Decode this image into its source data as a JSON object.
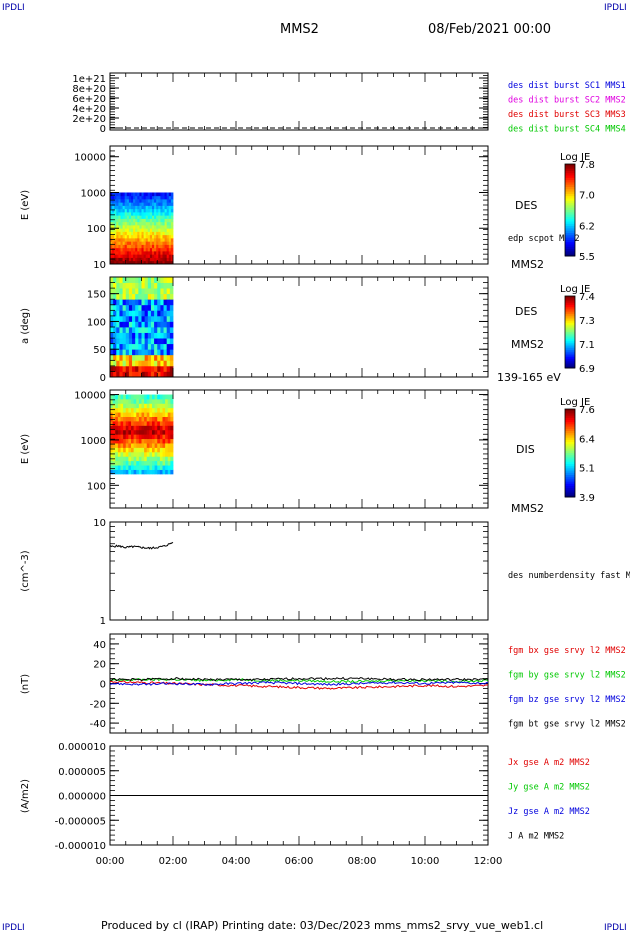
{
  "corner_label": "IPDLI",
  "header": {
    "spacecraft": "MMS2",
    "date": "08/Feb/2021 00:00"
  },
  "footer": {
    "text": "Produced by cl (IRAP)   Printing date: 03/Dec/2023   mms_mms2_srvy_vue_web1.cl"
  },
  "colors": {
    "black": "#000000",
    "red": "#e00000",
    "green": "#00c800",
    "blue": "#0000dd",
    "magenta": "#e000e0"
  },
  "chart_data": [
    {
      "type": "line",
      "panel": "burst-flags",
      "yticks": [
        "0",
        "2e+20",
        "4e+20",
        "6e+20",
        "8e+20",
        "1e+21"
      ],
      "ylim": [
        0,
        1.1e+21
      ],
      "series": [
        {
          "name": "des dist burst SC1 MMS1",
          "color": "#0000dd"
        },
        {
          "name": "des dist burst SC2 MMS2",
          "color": "#e000e0"
        },
        {
          "name": "des dist burst SC3 MMS3",
          "color": "#e00000"
        },
        {
          "name": "des dist burst SC4 MMS4",
          "color": "#00c800"
        }
      ],
      "baseline": 0
    },
    {
      "type": "heatmap",
      "panel": "des-energy",
      "ylabel": "E (eV)",
      "yticks": [
        "10",
        "100",
        "1000",
        "10000"
      ],
      "ylim_log10": [
        1,
        4.3
      ],
      "data_range_hours": [
        0,
        2.0
      ],
      "data_range_log10": [
        1,
        3
      ],
      "label": "DES",
      "annotation": "edp scpot MMS2",
      "bottom_label": "MMS2",
      "colorbar": {
        "title": "Log JE",
        "ticks": [
          "7.8",
          "7.0",
          "6.2",
          "5.5"
        ]
      }
    },
    {
      "type": "heatmap",
      "panel": "des-pitch",
      "ylabel": "a (deg)",
      "yticks": [
        "0",
        "50",
        "100",
        "150"
      ],
      "ylim": [
        0,
        180
      ],
      "data_range_hours": [
        0,
        2.0
      ],
      "label": "DES",
      "sublabel": "MMS2",
      "bottom_label": "139-165 eV",
      "colorbar": {
        "title": "Log JE",
        "ticks": [
          "7.4",
          "7.3",
          "7.1",
          "6.9"
        ]
      }
    },
    {
      "type": "heatmap",
      "panel": "dis-energy",
      "ylabel": "E (eV)",
      "yticks": [
        "100",
        "1000",
        "10000"
      ],
      "ylim_log10": [
        1.5,
        4.1
      ],
      "data_range_hours": [
        0,
        2.0
      ],
      "data_range_log10": [
        2.25,
        4.0
      ],
      "label": "DIS",
      "bottom_label": "MMS2",
      "colorbar": {
        "title": "Log JE",
        "ticks": [
          "7.6",
          "6.4",
          "5.1",
          "3.9"
        ]
      }
    },
    {
      "type": "line",
      "panel": "density",
      "ylabel": "(cm^-3)",
      "yscale": "log",
      "yticks": [
        "1",
        "10"
      ],
      "ylim": [
        1,
        10
      ],
      "series": [
        {
          "name": "des numberdensity fast M",
          "color": "#000000",
          "x": [
            0,
            0.25,
            0.5,
            0.75,
            1.0,
            1.25,
            1.5,
            1.75,
            2.0
          ],
          "y": [
            5.6,
            5.7,
            5.5,
            5.6,
            5.5,
            5.4,
            5.5,
            5.7,
            6.2
          ]
        }
      ]
    },
    {
      "type": "line",
      "panel": "fgm",
      "ylabel": "(nT)",
      "yticks": [
        "-40",
        "-20",
        "0",
        "20",
        "40"
      ],
      "ylim": [
        -50,
        50
      ],
      "series": [
        {
          "name": "fgm bx gse srvy l2 MMS2",
          "color": "#e00000",
          "x": [
            0,
            1,
            2,
            3,
            4,
            5,
            6,
            7,
            8,
            9,
            10,
            11,
            12
          ],
          "y": [
            2,
            1,
            0,
            -1,
            -2,
            -3,
            -4,
            -5,
            -4,
            -3,
            -2,
            -3,
            -2
          ]
        },
        {
          "name": "fgm by gse srvy l2 MMS2",
          "color": "#00c800",
          "x": [
            0,
            1,
            2,
            3,
            4,
            5,
            6,
            7,
            8,
            9,
            10,
            11,
            12
          ],
          "y": [
            3,
            4,
            4,
            3,
            4,
            3,
            3,
            2,
            2,
            3,
            3,
            2,
            3
          ]
        },
        {
          "name": "fgm bz gse srvy l2 MMS2",
          "color": "#0000dd",
          "x": [
            0,
            1,
            2,
            3,
            4,
            5,
            6,
            7,
            8,
            9,
            10,
            11,
            12
          ],
          "y": [
            0,
            -1,
            0,
            -1,
            0,
            1,
            0,
            -1,
            0,
            1,
            0,
            1,
            0
          ]
        },
        {
          "name": "fgm bt gse srvy l2 MMS2",
          "color": "#000000",
          "x": [
            0,
            1,
            2,
            3,
            4,
            5,
            6,
            7,
            8,
            9,
            10,
            11,
            12
          ],
          "y": [
            4,
            4,
            5,
            4,
            4,
            4,
            5,
            5,
            5,
            4,
            4,
            4,
            4
          ]
        }
      ]
    },
    {
      "type": "line",
      "panel": "current",
      "ylabel": "(A/m2)",
      "yticks": [
        "-0.000010",
        "-0.000005",
        "0.000000",
        "0.000005",
        "0.000010"
      ],
      "ylim": [
        -1e-05,
        1e-05
      ],
      "series": [
        {
          "name": "Jx gse A m2 MMS2",
          "color": "#e00000"
        },
        {
          "name": "Jy gse A m2 MMS2",
          "color": "#00c800"
        },
        {
          "name": "Jz gse A m2 MMS2",
          "color": "#0000dd"
        },
        {
          "name": "J A m2 MMS2",
          "color": "#000000",
          "x": [
            0,
            12
          ],
          "y": [
            0,
            0
          ]
        }
      ]
    }
  ],
  "xaxis": {
    "ticks": [
      "00:00",
      "02:00",
      "04:00",
      "06:00",
      "08:00",
      "10:00",
      "12:00"
    ],
    "xlim_hours": [
      0,
      12
    ]
  }
}
